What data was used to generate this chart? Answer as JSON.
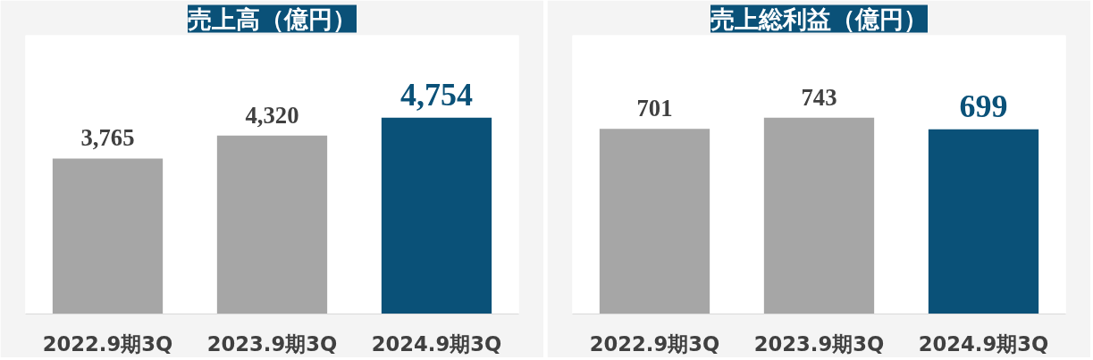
{
  "chart_data": [
    {
      "type": "bar",
      "title": "売上高（億円）",
      "categories": [
        "2022.9期3Q",
        "2023.9期3Q",
        "2024.9期3Q"
      ],
      "values": [
        3765,
        4320,
        4754
      ],
      "colors": [
        "#a6a6a6",
        "#a6a6a6",
        "#0a5178"
      ],
      "data_labels": true,
      "value_labels": [
        "3,765",
        "4,320",
        "4,754"
      ]
    },
    {
      "type": "bar",
      "title": "売上総利益（億円）",
      "categories": [
        "2022.9期3Q",
        "2023.9期3Q",
        "2024.9期3Q"
      ],
      "values": [
        701,
        743,
        699
      ],
      "colors": [
        "#a6a6a6",
        "#a6a6a6",
        "#0a5178"
      ],
      "data_labels": true,
      "value_labels": [
        "701",
        "743",
        "699"
      ]
    }
  ]
}
